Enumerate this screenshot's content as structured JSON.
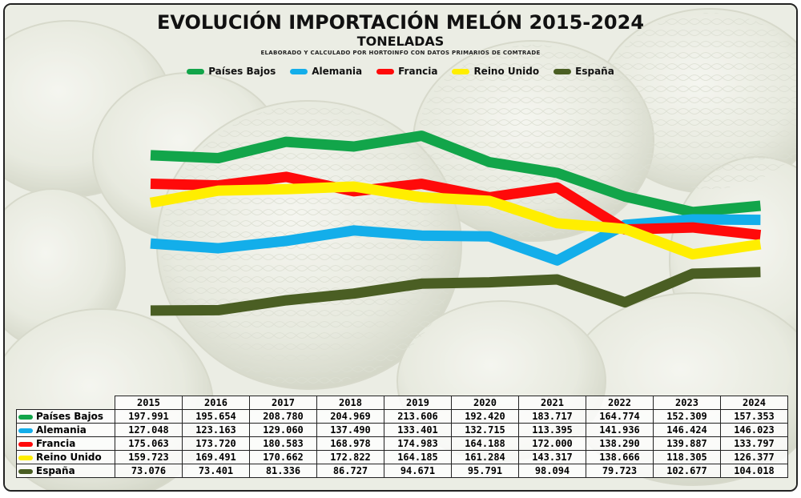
{
  "title": "EVOLUCIÓN IMPORTACIÓN MELÓN 2015-2024",
  "subtitle": "TONELADAS",
  "source": "ELABORADO Y CALCULADO POR HORTOINFO CON DATOS PRIMARIOS DE COMTRADE",
  "chart_data": {
    "type": "line",
    "x": [
      "2015",
      "2016",
      "2017",
      "2018",
      "2019",
      "2020",
      "2021",
      "2022",
      "2023",
      "2024"
    ],
    "series": [
      {
        "name": "Países Bajos",
        "color": "#12a54a",
        "values": [
          197991,
          195654,
          208780,
          204969,
          213606,
          192420,
          183717,
          164774,
          152309,
          157353
        ],
        "labels": [
          "197.991",
          "195.654",
          "208.780",
          "204.969",
          "213.606",
          "192.420",
          "183.717",
          "164.774",
          "152.309",
          "157.353"
        ]
      },
      {
        "name": "Alemania",
        "color": "#13aeea",
        "values": [
          127048,
          123163,
          129060,
          137490,
          133401,
          132715,
          113395,
          141936,
          146424,
          146023
        ],
        "labels": [
          "127.048",
          "123.163",
          "129.060",
          "137.490",
          "133.401",
          "132.715",
          "113.395",
          "141.936",
          "146.424",
          "146.023"
        ]
      },
      {
        "name": "Francia",
        "color": "#ff0a0a",
        "values": [
          175063,
          173720,
          180583,
          168978,
          174983,
          164188,
          172000,
          138290,
          139887,
          133797
        ],
        "labels": [
          "175.063",
          "173.720",
          "180.583",
          "168.978",
          "174.983",
          "164.188",
          "172.000",
          "138.290",
          "139.887",
          "133.797"
        ]
      },
      {
        "name": "Reino Unido",
        "color": "#ffee00",
        "values": [
          159723,
          169491,
          170662,
          172822,
          164185,
          161284,
          143317,
          138666,
          118305,
          126377
        ],
        "labels": [
          "159.723",
          "169.491",
          "170.662",
          "172.822",
          "164.185",
          "161.284",
          "143.317",
          "138.666",
          "118.305",
          "126.377"
        ]
      },
      {
        "name": "España",
        "color": "#4a5e23",
        "values": [
          73076,
          73401,
          81336,
          86727,
          94671,
          95791,
          98094,
          79723,
          102677,
          104018
        ],
        "labels": [
          "73.076",
          "73.401",
          "81.336",
          "86.727",
          "94.671",
          "95.791",
          "98.094",
          "79.723",
          "102.677",
          "104.018"
        ]
      }
    ],
    "grid": false,
    "legend": "top-center",
    "data_table": true
  }
}
